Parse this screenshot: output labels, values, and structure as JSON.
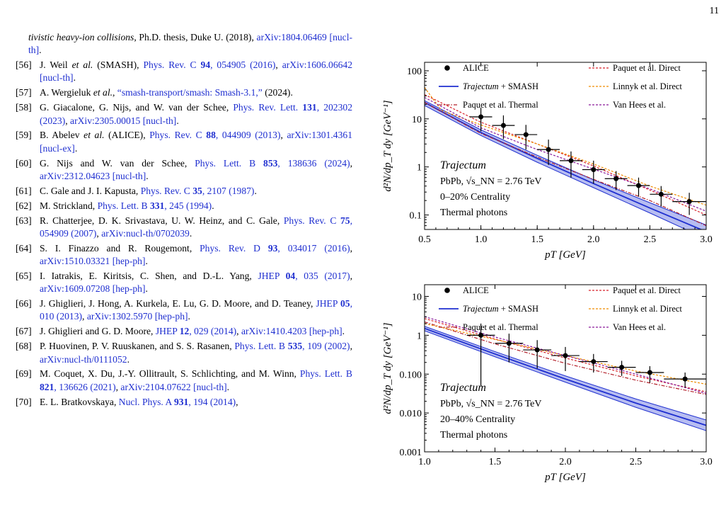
{
  "page_number": "11",
  "references": [
    {
      "num": "",
      "parts": [
        [
          "it",
          "tivistic heavy-ion collisions"
        ],
        [
          "t",
          ", Ph.D. thesis, Duke U. (2018), "
        ],
        [
          "l",
          "arXiv:1804.06469 [nucl-th]"
        ],
        [
          "t",
          "."
        ]
      ]
    },
    {
      "num": "[56]",
      "parts": [
        [
          "t",
          "J. Weil "
        ],
        [
          "it",
          "et al."
        ],
        [
          "t",
          " (SMASH), "
        ],
        [
          "l",
          "Phys. Rev. C "
        ],
        [
          "bl",
          "94"
        ],
        [
          "l",
          ", 054905 (2016)"
        ],
        [
          "t",
          ", "
        ],
        [
          "l",
          "arXiv:1606.06642 [nucl-th]"
        ],
        [
          "t",
          "."
        ]
      ]
    },
    {
      "num": "[57]",
      "parts": [
        [
          "t",
          "A. Wergieluk "
        ],
        [
          "it",
          "et al."
        ],
        [
          "t",
          ", "
        ],
        [
          "l",
          "“smash-transport/smash: Smash-3.1,”"
        ],
        [
          "t",
          " (2024)."
        ]
      ]
    },
    {
      "num": "[58]",
      "parts": [
        [
          "t",
          "G. Giacalone, G. Nijs,  and W. van der Schee, "
        ],
        [
          "l",
          "Phys. Rev. Lett. "
        ],
        [
          "bl",
          "131"
        ],
        [
          "l",
          ", 202302 (2023)"
        ],
        [
          "t",
          ", "
        ],
        [
          "l",
          "arXiv:2305.00015 [nucl-th]"
        ],
        [
          "t",
          "."
        ]
      ]
    },
    {
      "num": "[59]",
      "parts": [
        [
          "t",
          "B. Abelev "
        ],
        [
          "it",
          "et al."
        ],
        [
          "t",
          " (ALICE), "
        ],
        [
          "l",
          "Phys. Rev. C "
        ],
        [
          "bl",
          "88"
        ],
        [
          "l",
          ", 044909 (2013)"
        ],
        [
          "t",
          ", "
        ],
        [
          "l",
          "arXiv:1301.4361 [nucl-ex]"
        ],
        [
          "t",
          "."
        ]
      ]
    },
    {
      "num": "[60]",
      "parts": [
        [
          "t",
          "G. Nijs and W. van der Schee, "
        ],
        [
          "l",
          "Phys. Lett. B "
        ],
        [
          "bl",
          "853"
        ],
        [
          "l",
          ", 138636 (2024)"
        ],
        [
          "t",
          ", "
        ],
        [
          "l",
          "arXiv:2312.04623 [nucl-th]"
        ],
        [
          "t",
          "."
        ]
      ]
    },
    {
      "num": "[61]",
      "parts": [
        [
          "t",
          "C. Gale and J. I. Kapusta, "
        ],
        [
          "l",
          "Phys. Rev. C "
        ],
        [
          "bl",
          "35"
        ],
        [
          "l",
          ", 2107 (1987)"
        ],
        [
          "t",
          "."
        ]
      ]
    },
    {
      "num": "[62]",
      "parts": [
        [
          "t",
          "M. Strickland, "
        ],
        [
          "l",
          "Phys. Lett. B "
        ],
        [
          "bl",
          "331"
        ],
        [
          "l",
          ", 245 (1994)"
        ],
        [
          "t",
          "."
        ]
      ]
    },
    {
      "num": "[63]",
      "parts": [
        [
          "t",
          "R. Chatterjee, D. K. Srivastava, U. W. Heinz,  and C. Gale, "
        ],
        [
          "l",
          "Phys. Rev. C "
        ],
        [
          "bl",
          "75"
        ],
        [
          "l",
          ", 054909 (2007)"
        ],
        [
          "t",
          ", "
        ],
        [
          "l",
          "arXiv:nucl-th/0702039"
        ],
        [
          "t",
          "."
        ]
      ]
    },
    {
      "num": "[64]",
      "parts": [
        [
          "t",
          "S. I. Finazzo and R. Rougemont, "
        ],
        [
          "l",
          "Phys. Rev. D "
        ],
        [
          "bl",
          "93"
        ],
        [
          "l",
          ", 034017 (2016)"
        ],
        [
          "t",
          ", "
        ],
        [
          "l",
          "arXiv:1510.03321 [hep-ph]"
        ],
        [
          "t",
          "."
        ]
      ]
    },
    {
      "num": "[65]",
      "parts": [
        [
          "t",
          "I. Iatrakis, E. Kiritsis, C. Shen,  and D.-L. Yang, "
        ],
        [
          "l",
          "JHEP "
        ],
        [
          "bl",
          "04"
        ],
        [
          "l",
          ", 035 (2017)"
        ],
        [
          "t",
          ", "
        ],
        [
          "l",
          "arXiv:1609.07208 [hep-ph]"
        ],
        [
          "t",
          "."
        ]
      ]
    },
    {
      "num": "[66]",
      "parts": [
        [
          "t",
          "J. Ghiglieri, J. Hong, A. Kurkela, E. Lu, G. D. Moore, and D. Teaney, "
        ],
        [
          "l",
          "JHEP "
        ],
        [
          "bl",
          "05"
        ],
        [
          "l",
          ", 010 (2013)"
        ],
        [
          "t",
          ", "
        ],
        [
          "l",
          "arXiv:1302.5970 [hep-ph]"
        ],
        [
          "t",
          "."
        ]
      ]
    },
    {
      "num": "[67]",
      "parts": [
        [
          "t",
          "J. Ghiglieri and G. D. Moore, "
        ],
        [
          "l",
          "JHEP "
        ],
        [
          "bl",
          "12"
        ],
        [
          "l",
          ", 029 (2014)"
        ],
        [
          "t",
          ", "
        ],
        [
          "l",
          "arXiv:1410.4203 [hep-ph]"
        ],
        [
          "t",
          "."
        ]
      ]
    },
    {
      "num": "[68]",
      "parts": [
        [
          "t",
          "P. Huovinen, P. V. Ruuskanen,  and S. S. Rasanen, "
        ],
        [
          "l",
          "Phys. Lett. B "
        ],
        [
          "bl",
          "535"
        ],
        [
          "l",
          ", 109 (2002)"
        ],
        [
          "t",
          ", "
        ],
        [
          "l",
          "arXiv:nucl-th/0111052"
        ],
        [
          "t",
          "."
        ]
      ]
    },
    {
      "num": "[69]",
      "parts": [
        [
          "t",
          "M. Coquet, X. Du, J.-Y. Ollitrault, S. Schlichting, and M. Winn, "
        ],
        [
          "l",
          "Phys. Lett. B "
        ],
        [
          "bl",
          "821"
        ],
        [
          "l",
          ", 136626 (2021)"
        ],
        [
          "t",
          ", "
        ],
        [
          "l",
          "arXiv:2104.07622 [nucl-th]"
        ],
        [
          "t",
          "."
        ]
      ]
    },
    {
      "num": "[70]",
      "parts": [
        [
          "t",
          "E. L. Bratkovskaya, "
        ],
        [
          "l",
          "Nucl. Phys. A "
        ],
        [
          "bl",
          "931"
        ],
        [
          "l",
          ", 194 (2014)"
        ],
        [
          "t",
          ","
        ]
      ]
    }
  ],
  "chart_data": [
    {
      "type": "line",
      "log_y": true,
      "xlabel": "p_T [GeV]",
      "ylabel": "d²N/dp_T dy [GeV⁻¹]",
      "xlim": [
        0.5,
        3.0
      ],
      "ylim": [
        0.05,
        150
      ],
      "xticks": [
        "0.5",
        "1.0",
        "1.5",
        "2.0",
        "2.5",
        "3.0"
      ],
      "yticks": [
        "0.1",
        "1",
        "10",
        "100"
      ],
      "annotation": {
        "title": "Trajectum",
        "system": "PbPb, ",
        "energy": "√s_NN = 2.76 TeV",
        "centrality": "0–20% Centrality",
        "kind": "Thermal photons"
      },
      "legend": [
        "ALICE",
        "Trajectum + SMASH",
        "Paquet et al. Thermal",
        "Paquet et al. Direct",
        "Linnyk et al. Direct",
        "Van Hees et al."
      ],
      "alice": {
        "x": [
          1.0,
          1.2,
          1.4,
          1.6,
          1.8,
          2.0,
          2.2,
          2.4,
          2.6,
          2.85
        ],
        "y": [
          11,
          7.3,
          4.7,
          2.3,
          1.35,
          0.88,
          0.57,
          0.41,
          0.27,
          0.19
        ],
        "ylo": [
          5.5,
          3.8,
          2.3,
          1.1,
          0.6,
          0.45,
          0.33,
          0.24,
          0.15,
          0.1
        ],
        "yhi": [
          17,
          11.8,
          7.5,
          3.7,
          2.1,
          1.35,
          0.82,
          0.6,
          0.4,
          0.29
        ],
        "xerr": [
          0.1,
          0.1,
          0.1,
          0.1,
          0.1,
          0.1,
          0.1,
          0.1,
          0.1,
          0.15
        ]
      },
      "series": [
        {
          "name": "Trajectum + SMASH",
          "color": "#1f2fd0",
          "x": [
            0.5,
            1.0,
            1.5,
            2.0,
            2.5,
            3.0
          ],
          "y": [
            22,
            5.2,
            1.5,
            0.45,
            0.14,
            0.045
          ],
          "band_lo": [
            19,
            4.5,
            1.25,
            0.37,
            0.11,
            0.032
          ],
          "band_hi": [
            24,
            5.9,
            1.75,
            0.54,
            0.18,
            0.062
          ]
        },
        {
          "name": "Paquet et al. Thermal",
          "color": "#b3202a",
          "x": [
            0.5,
            1.0,
            1.5,
            2.0,
            2.5,
            3.0
          ],
          "y": [
            22,
            5.0,
            1.6,
            0.55,
            0.2,
            0.06
          ]
        },
        {
          "name": "Paquet et al. Direct",
          "color": "#d8232a",
          "x": [
            0.5,
            1.0,
            1.5,
            2.0,
            2.5,
            3.0
          ],
          "y": [
            32,
            8.5,
            3.0,
            1.05,
            0.33,
            0.1
          ]
        },
        {
          "name": "Linnyk et al. Direct",
          "color": "#f08c00",
          "x": [
            0.5,
            0.65,
            1.0,
            1.5,
            2.0,
            2.5,
            3.0
          ],
          "y": [
            45,
            15,
            7.5,
            3.0,
            1.15,
            0.4,
            0.16
          ]
        },
        {
          "name": "Van Hees et al.",
          "color": "#8a1a9b",
          "x": [
            0.5,
            1.0,
            1.5,
            2.0,
            2.5,
            3.0
          ],
          "y": [
            28,
            6.5,
            2.3,
            0.9,
            0.35,
            0.12
          ]
        }
      ]
    },
    {
      "type": "line",
      "log_y": true,
      "xlabel": "p_T [GeV]",
      "ylabel": "d²N/dp_T dy [GeV⁻¹]",
      "xlim": [
        1.0,
        3.0
      ],
      "ylim": [
        0.001,
        20
      ],
      "xticks": [
        "1.0",
        "1.5",
        "2.0",
        "2.5",
        "3.0"
      ],
      "yticks": [
        "0.001",
        "0.010",
        "0.100",
        "1",
        "10"
      ],
      "annotation": {
        "title": "Trajectum",
        "system": "PbPb, ",
        "energy": "√s_NN = 2.76 TeV",
        "centrality": "20–40% Centrality",
        "kind": "Thermal photons"
      },
      "legend": [
        "ALICE",
        "Trajectum + SMASH",
        "Paquet et al. Thermal",
        "Paquet et al. Direct",
        "Linnyk et al. Direct",
        "Van Hees et al."
      ],
      "alice": {
        "x": [
          1.4,
          1.6,
          1.8,
          2.0,
          2.2,
          2.4,
          2.6,
          2.85
        ],
        "y": [
          1.0,
          0.62,
          0.42,
          0.3,
          0.21,
          0.15,
          0.11,
          0.075
        ],
        "ylo": [
          0.05,
          0.2,
          0.14,
          0.12,
          0.11,
          0.09,
          0.06,
          0.045
        ],
        "yhi": [
          2.0,
          1.1,
          0.75,
          0.5,
          0.33,
          0.22,
          0.16,
          0.11
        ],
        "xerr": [
          0.1,
          0.1,
          0.1,
          0.1,
          0.1,
          0.1,
          0.1,
          0.15
        ]
      },
      "series": [
        {
          "name": "Trajectum + SMASH",
          "color": "#1f2fd0",
          "x": [
            1.0,
            1.5,
            2.0,
            2.5,
            3.0
          ],
          "y": [
            1.5,
            0.33,
            0.075,
            0.018,
            0.0048
          ],
          "band_lo": [
            1.3,
            0.28,
            0.062,
            0.014,
            0.0035
          ],
          "band_hi": [
            1.7,
            0.38,
            0.09,
            0.023,
            0.0066
          ]
        },
        {
          "name": "Paquet et al. Thermal",
          "color": "#b3202a",
          "x": [
            1.0,
            1.5,
            2.0,
            2.5,
            3.0
          ],
          "y": [
            2.2,
            0.6,
            0.19,
            0.07,
            0.03
          ]
        },
        {
          "name": "Paquet et al. Direct",
          "color": "#d8232a",
          "x": [
            1.0,
            1.5,
            2.0,
            2.5,
            3.0
          ],
          "y": [
            2.7,
            0.8,
            0.26,
            0.09,
            0.035
          ]
        },
        {
          "name": "Linnyk et al. Direct",
          "color": "#f08c00",
          "x": [
            1.0,
            1.5,
            2.0,
            2.5,
            3.0
          ],
          "y": [
            2.0,
            0.78,
            0.3,
            0.12,
            0.055
          ]
        },
        {
          "name": "Van Hees et al.",
          "color": "#8a1a9b",
          "x": [
            1.0,
            1.5,
            2.0,
            2.5,
            3.0
          ],
          "y": [
            3.0,
            0.9,
            0.3,
            0.1,
            0.032
          ]
        }
      ]
    }
  ]
}
